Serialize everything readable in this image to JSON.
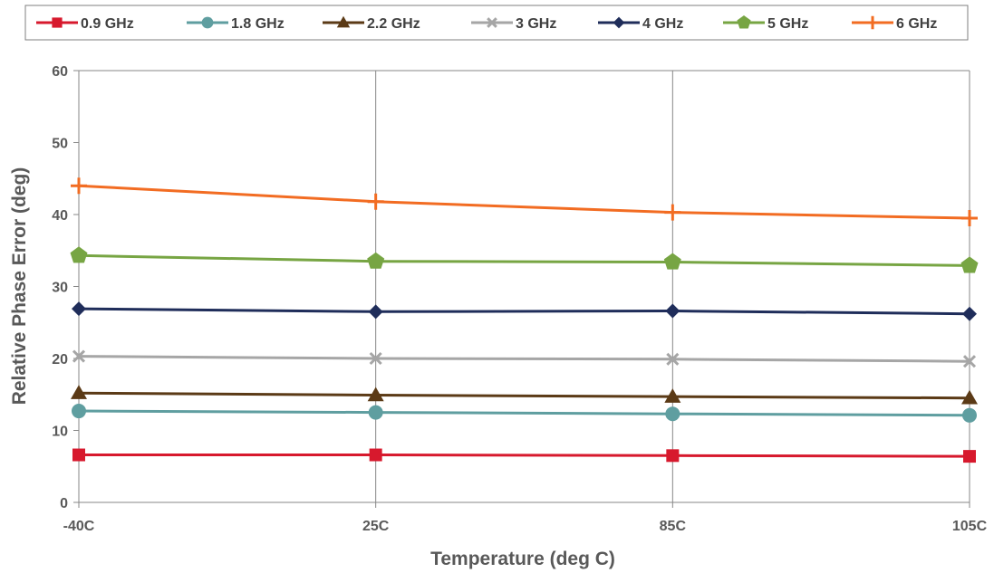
{
  "chart_data": {
    "type": "line",
    "categories": [
      "-40C",
      "25C",
      "85C",
      "105C"
    ],
    "xlabel": "Temperature (deg C)",
    "ylabel": "Relative Phase Error (deg)",
    "ylim": [
      0,
      60
    ],
    "yticks": [
      0,
      10,
      20,
      30,
      40,
      50,
      60
    ],
    "grid": "vertical",
    "legend": "top",
    "series": [
      {
        "name": "0.9 GHz",
        "color": "#d7192d",
        "marker": "square",
        "values": [
          6.6,
          6.6,
          6.5,
          6.4
        ]
      },
      {
        "name": "1.8 GHz",
        "color": "#5f9ea0",
        "marker": "circle",
        "values": [
          12.7,
          12.5,
          12.3,
          12.1
        ]
      },
      {
        "name": "2.2 GHz",
        "color": "#5b3a16",
        "marker": "triangle",
        "values": [
          15.2,
          14.9,
          14.7,
          14.5
        ]
      },
      {
        "name": "3 GHz",
        "color": "#a6a6a6",
        "marker": "x",
        "values": [
          20.3,
          20.0,
          19.9,
          19.6
        ]
      },
      {
        "name": "4 GHz",
        "color": "#1f2d5a",
        "marker": "diamond",
        "values": [
          26.9,
          26.5,
          26.6,
          26.2
        ]
      },
      {
        "name": "5 GHz",
        "color": "#77a543",
        "marker": "pentagon",
        "values": [
          34.3,
          33.5,
          33.4,
          32.9
        ]
      },
      {
        "name": "6 GHz",
        "color": "#f26c22",
        "marker": "plus",
        "values": [
          44.0,
          41.8,
          40.3,
          39.5
        ]
      }
    ]
  }
}
